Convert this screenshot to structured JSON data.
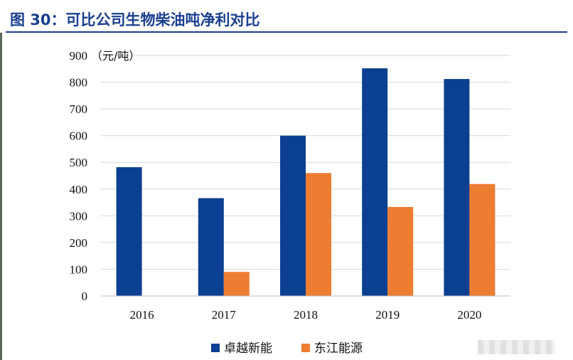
{
  "figure": {
    "title": "图 30：可比公司生物柴油吨净利对比"
  },
  "chart_data": {
    "type": "bar",
    "categories": [
      "2016",
      "2017",
      "2018",
      "2019",
      "2020"
    ],
    "series": [
      {
        "name": "卓越新能",
        "color": "#0b3f91",
        "values": [
          482,
          366,
          600,
          852,
          812
        ]
      },
      {
        "name": "东江能源",
        "color": "#ed7d31",
        "values": [
          null,
          90,
          460,
          333,
          419
        ]
      }
    ],
    "ylim": [
      0,
      900
    ],
    "yticks": [
      0,
      100,
      200,
      300,
      400,
      500,
      600,
      700,
      800,
      900
    ],
    "y_unit": "（元/吨）",
    "grid": true,
    "legend_position": "bottom-center"
  }
}
